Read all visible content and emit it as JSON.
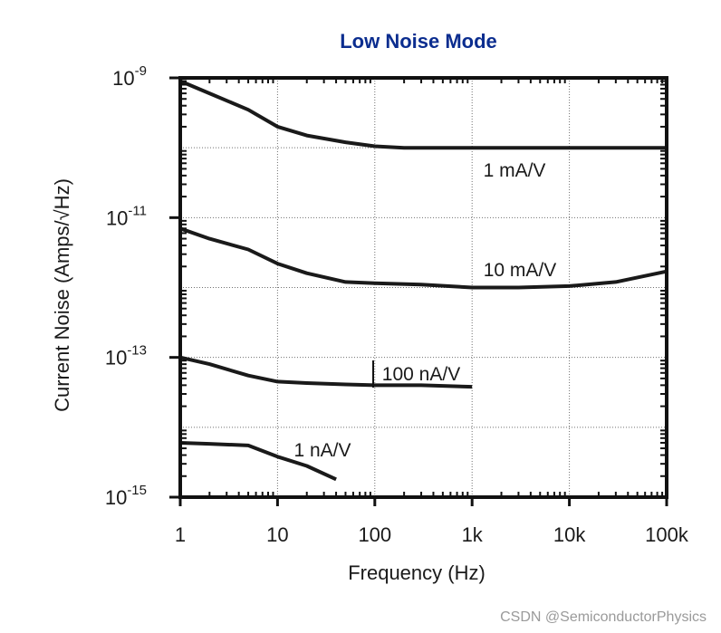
{
  "chart_data": {
    "type": "line",
    "title": "Low Noise Mode",
    "xlabel": "Frequency  (Hz)",
    "ylabel": "Current Noise  (Amps/√Hz)",
    "x_scale": "log",
    "y_scale": "log",
    "xlim": [
      1,
      100000
    ],
    "ylim": [
      1e-15,
      1e-09
    ],
    "grid": true,
    "x_ticks": [
      {
        "value": 1,
        "label": "1"
      },
      {
        "value": 10,
        "label": "10"
      },
      {
        "value": 100,
        "label": "100"
      },
      {
        "value": 1000,
        "label": "1k"
      },
      {
        "value": 10000,
        "label": "10k"
      },
      {
        "value": 100000,
        "label": "100k"
      }
    ],
    "y_ticks": [
      {
        "value": 1e-09,
        "base": "10",
        "exp": "-9"
      },
      {
        "value": 1e-11,
        "base": "10",
        "exp": "-11"
      },
      {
        "value": 1e-13,
        "base": "10",
        "exp": "-13"
      },
      {
        "value": 1e-15,
        "base": "10",
        "exp": "-15"
      }
    ],
    "series": [
      {
        "name": "1 mA/V",
        "x": [
          1,
          2,
          5,
          10,
          20,
          50,
          100,
          200,
          1000,
          10000,
          100000
        ],
        "y": [
          9e-10,
          6e-10,
          3.5e-10,
          2e-10,
          1.5e-10,
          1.2e-10,
          1.05e-10,
          1e-10,
          1e-10,
          1e-10,
          1e-10
        ]
      },
      {
        "name": "10 mA/V",
        "x": [
          1,
          2,
          5,
          10,
          20,
          50,
          100,
          300,
          1000,
          3000,
          10000,
          30000,
          100000
        ],
        "y": [
          7e-12,
          5e-12,
          3.5e-12,
          2.2e-12,
          1.6e-12,
          1.2e-12,
          1.15e-12,
          1.1e-12,
          1e-12,
          1e-12,
          1.05e-12,
          1.2e-12,
          1.7e-12
        ]
      },
      {
        "name": "100 nA/V",
        "x": [
          1,
          2,
          5,
          10,
          20,
          50,
          100,
          300,
          1000
        ],
        "y": [
          1e-13,
          8e-14,
          5.5e-14,
          4.5e-14,
          4.3e-14,
          4.1e-14,
          4e-14,
          4e-14,
          3.8e-14
        ]
      },
      {
        "name": "1 nA/V",
        "x": [
          1,
          2,
          5,
          10,
          20,
          40
        ],
        "y": [
          6e-15,
          5.8e-15,
          5.5e-15,
          3.8e-15,
          2.8e-15,
          1.8e-15
        ]
      }
    ]
  },
  "watermark": "CSDN @SemiconductorPhysics",
  "colors": {
    "title": "#0b2d8f",
    "line": "#1a1a1a",
    "grid": "#707070",
    "background": "#ffffff"
  }
}
